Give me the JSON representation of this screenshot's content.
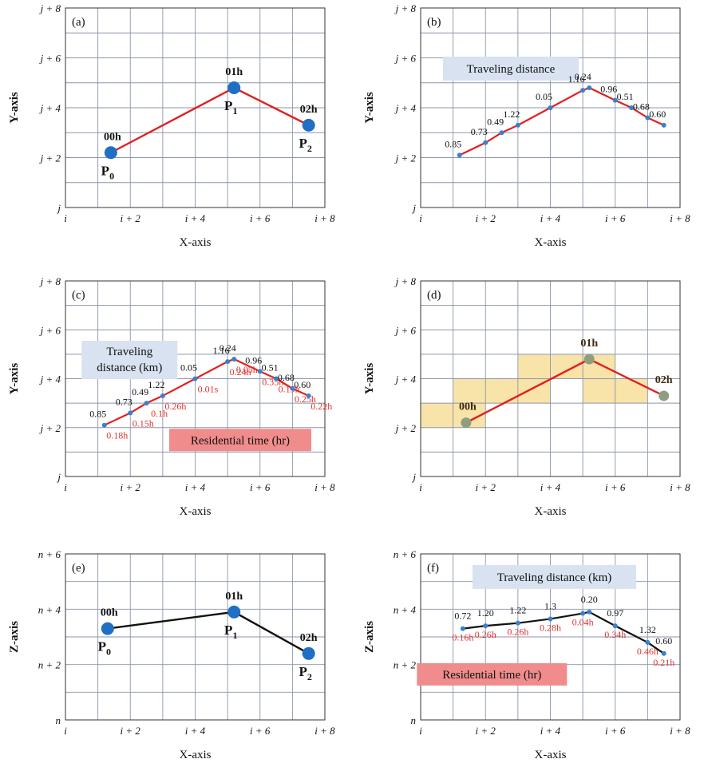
{
  "colors": {
    "grid": "#8c96aa",
    "frame": "#333333",
    "red": "#e02020",
    "blue": "#1f6fc5",
    "dot_blue": "#3a7fd0",
    "black": "#111111",
    "gray_dot": "#8f9e80",
    "box_blue": "#d9e2f0",
    "box_red": "#f08c8c",
    "cell_yellow": "#f7e0a0",
    "time_red": "#e03030"
  },
  "panels": [
    {
      "id": "a",
      "tag": "(a)",
      "xlabel": "X-axis",
      "ylabel": "Y-axis",
      "x_ticks": [
        "i",
        "i + 2",
        "i + 4",
        "i + 6",
        "i + 8"
      ],
      "y_ticks": [
        "j",
        "j + 2",
        "j + 4",
        "j + 6",
        "j + 8"
      ],
      "line_color": "red",
      "points": [
        {
          "x": 1.4,
          "y": 2.2,
          "hour": "00h",
          "name": "P",
          "sub": "0"
        },
        {
          "x": 5.2,
          "y": 4.8,
          "hour": "01h",
          "name": "P",
          "sub": "1"
        },
        {
          "x": 7.5,
          "y": 3.3,
          "hour": "02h",
          "name": "P",
          "sub": "2"
        }
      ]
    },
    {
      "id": "b",
      "tag": "(b)",
      "xlabel": "X-axis",
      "ylabel": "Y-axis",
      "x_ticks": [
        "i",
        "i + 2",
        "i + 4",
        "i + 6",
        "i + 8"
      ],
      "y_ticks": [
        "j",
        "j + 2",
        "j + 4",
        "j + 6",
        "j + 8"
      ],
      "box_blue": "Traveling distance",
      "line_color": "red",
      "track": [
        {
          "x": 1.2,
          "y": 2.1,
          "d": "0.85"
        },
        {
          "x": 2.0,
          "y": 2.6,
          "d": "0.73"
        },
        {
          "x": 2.5,
          "y": 3.0,
          "d": "0.49"
        },
        {
          "x": 3.0,
          "y": 3.3,
          "d": "1.22"
        },
        {
          "x": 4.0,
          "y": 4.0,
          "d": "0.05"
        },
        {
          "x": 5.0,
          "y": 4.7,
          "d": "1.16"
        },
        {
          "x": 5.2,
          "y": 4.8,
          "d": "0.24"
        },
        {
          "x": 6.0,
          "y": 4.3,
          "d": "0.96"
        },
        {
          "x": 6.5,
          "y": 4.0,
          "d": "0.51"
        },
        {
          "x": 7.0,
          "y": 3.6,
          "d": "0.68"
        },
        {
          "x": 7.5,
          "y": 3.3,
          "d": "0.60"
        }
      ]
    },
    {
      "id": "c",
      "tag": "(c)",
      "xlabel": "X-axis",
      "ylabel": "Y-axis",
      "x_ticks": [
        "i",
        "i + 2",
        "i + 4",
        "i + 6",
        "i + 8"
      ],
      "y_ticks": [
        "j",
        "j + 2",
        "j + 4",
        "j + 6",
        "j + 8"
      ],
      "box_blue_lines": [
        "Traveling",
        "distance (km)"
      ],
      "box_red": "Residential time (hr)",
      "line_color": "red",
      "track": [
        {
          "x": 1.2,
          "y": 2.1,
          "d": "0.85",
          "t": "0.18h"
        },
        {
          "x": 2.0,
          "y": 2.6,
          "d": "0.73",
          "t": "0.15h"
        },
        {
          "x": 2.5,
          "y": 3.0,
          "d": "0.49",
          "t": "0.1h"
        },
        {
          "x": 3.0,
          "y": 3.3,
          "d": "1.22",
          "t": "0.26h"
        },
        {
          "x": 4.0,
          "y": 4.0,
          "d": "0.05",
          "t": "0.01s"
        },
        {
          "x": 5.0,
          "y": 4.7,
          "d": "1.16",
          "t": "0.24h"
        },
        {
          "x": 5.2,
          "y": 4.8,
          "d": "0.24",
          "t": "0.05h"
        },
        {
          "x": 6.0,
          "y": 4.3,
          "d": "0.96",
          "t": "0.35h"
        },
        {
          "x": 6.5,
          "y": 4.0,
          "d": "0.51",
          "t": "0.19h"
        },
        {
          "x": 7.0,
          "y": 3.6,
          "d": "0.68",
          "t": "0.25h"
        },
        {
          "x": 7.5,
          "y": 3.3,
          "d": "0.60",
          "t": "0.22h"
        }
      ]
    },
    {
      "id": "d",
      "tag": "(d)",
      "xlabel": "X-axis",
      "ylabel": "Y-axis",
      "x_ticks": [
        "i",
        "i + 2",
        "i + 4",
        "i + 6",
        "i + 8"
      ],
      "y_ticks": [
        "j",
        "j + 2",
        "j + 4",
        "j + 6",
        "j + 8"
      ],
      "line_color": "red",
      "cells": [
        {
          "x0": 0,
          "y0": 2,
          "x1": 2,
          "y1": 3
        },
        {
          "x0": 1,
          "y0": 3,
          "x1": 4,
          "y1": 4
        },
        {
          "x0": 3,
          "y0": 4,
          "x1": 6,
          "y1": 5
        },
        {
          "x0": 5,
          "y0": 3,
          "x1": 7,
          "y1": 4
        }
      ],
      "points": [
        {
          "x": 1.4,
          "y": 2.2,
          "hour": "00h"
        },
        {
          "x": 5.2,
          "y": 4.8,
          "hour": "01h"
        },
        {
          "x": 7.5,
          "y": 3.3,
          "hour": "02h"
        }
      ]
    },
    {
      "id": "e",
      "tag": "(e)",
      "xlabel": "X-axis",
      "ylabel": "Z-axis",
      "x_ticks": [
        "i",
        "i + 2",
        "i + 4",
        "i + 6",
        "i + 8"
      ],
      "y_ticks": [
        "n",
        "n + 2",
        "n + 4",
        "n + 6"
      ],
      "line_color": "black",
      "points": [
        {
          "x": 1.3,
          "y": 3.3,
          "hour": "00h",
          "name": "P",
          "sub": "0"
        },
        {
          "x": 5.2,
          "y": 3.9,
          "hour": "01h",
          "name": "P",
          "sub": "1"
        },
        {
          "x": 7.5,
          "y": 2.4,
          "hour": "02h",
          "name": "P",
          "sub": "2"
        }
      ]
    },
    {
      "id": "f",
      "tag": "(f)",
      "xlabel": "X-axis",
      "ylabel": "Z-axis",
      "x_ticks": [
        "i",
        "i + 2",
        "i + 4",
        "i + 6",
        "i + 8"
      ],
      "y_ticks": [
        "n",
        "n + 2",
        "n + 4",
        "n + 6"
      ],
      "box_blue": "Traveling distance (km)",
      "box_red": "Residential time (hr)",
      "line_color": "black",
      "track": [
        {
          "x": 1.3,
          "y": 3.3,
          "d": "0.72",
          "t": "0.16h"
        },
        {
          "x": 2.0,
          "y": 3.4,
          "d": "1.20",
          "t": "0.26h"
        },
        {
          "x": 3.0,
          "y": 3.5,
          "d": "1.22",
          "t": "0.26h"
        },
        {
          "x": 4.0,
          "y": 3.65,
          "d": "1.3",
          "t": "0.28h"
        },
        {
          "x": 5.0,
          "y": 3.85,
          "d": "",
          "t": "0.04h"
        },
        {
          "x": 5.2,
          "y": 3.9,
          "d": "0.20",
          "t": ""
        },
        {
          "x": 6.0,
          "y": 3.4,
          "d": "0.97",
          "t": "0.34h"
        },
        {
          "x": 7.0,
          "y": 2.8,
          "d": "1.32",
          "t": "0.46h"
        },
        {
          "x": 7.5,
          "y": 2.4,
          "d": "0.60",
          "t": "0.21h"
        }
      ]
    }
  ]
}
